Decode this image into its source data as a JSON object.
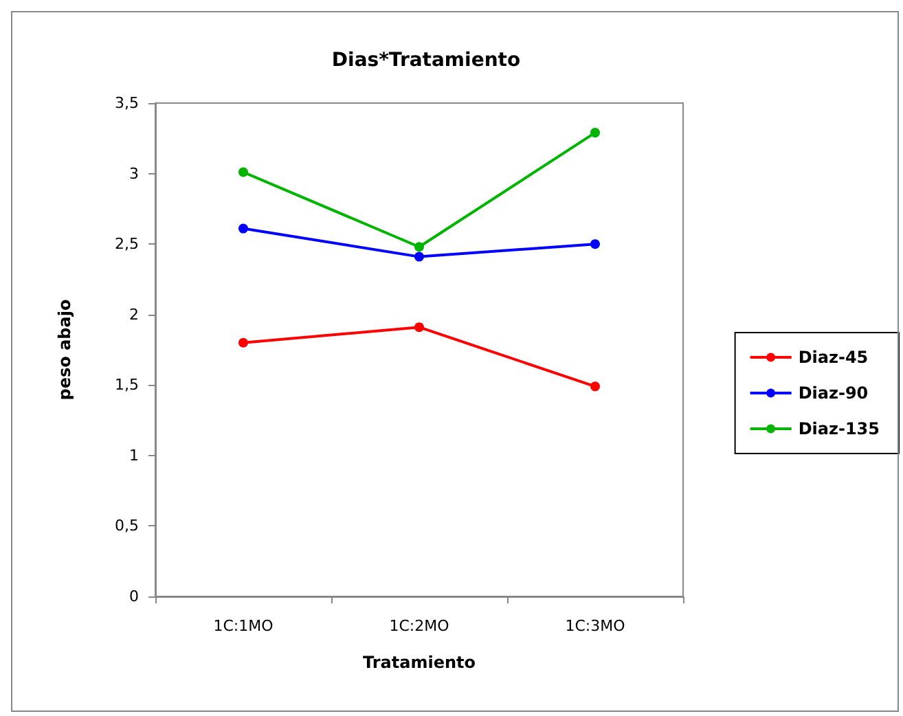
{
  "chart_data": {
    "type": "line",
    "title": "Dias*Tratamiento",
    "xlabel": "Tratamiento",
    "ylabel": "peso abajo",
    "categories": [
      "1C:1MO",
      "1C:2MO",
      "1C:3MO"
    ],
    "series": [
      {
        "name": "Diaz-45",
        "color": "#ff0000",
        "values": [
          1.8,
          1.91,
          1.49
        ]
      },
      {
        "name": "Diaz-90",
        "color": "#0000ff",
        "values": [
          2.61,
          2.41,
          2.5
        ]
      },
      {
        "name": "Diaz-135",
        "color": "#00b400",
        "values": [
          3.01,
          2.48,
          3.29
        ]
      }
    ],
    "ylim": [
      0,
      3.5
    ],
    "yticks": [
      {
        "value": 0,
        "label": "0"
      },
      {
        "value": 0.5,
        "label": "0,5"
      },
      {
        "value": 1,
        "label": "1"
      },
      {
        "value": 1.5,
        "label": "1,5"
      },
      {
        "value": 2,
        "label": "2"
      },
      {
        "value": 2.5,
        "label": "2,5"
      },
      {
        "value": 3,
        "label": "3"
      },
      {
        "value": 3.5,
        "label": "3,5"
      }
    ],
    "grid": false,
    "legend": "right",
    "marker": "circle",
    "line_style": "solid"
  }
}
